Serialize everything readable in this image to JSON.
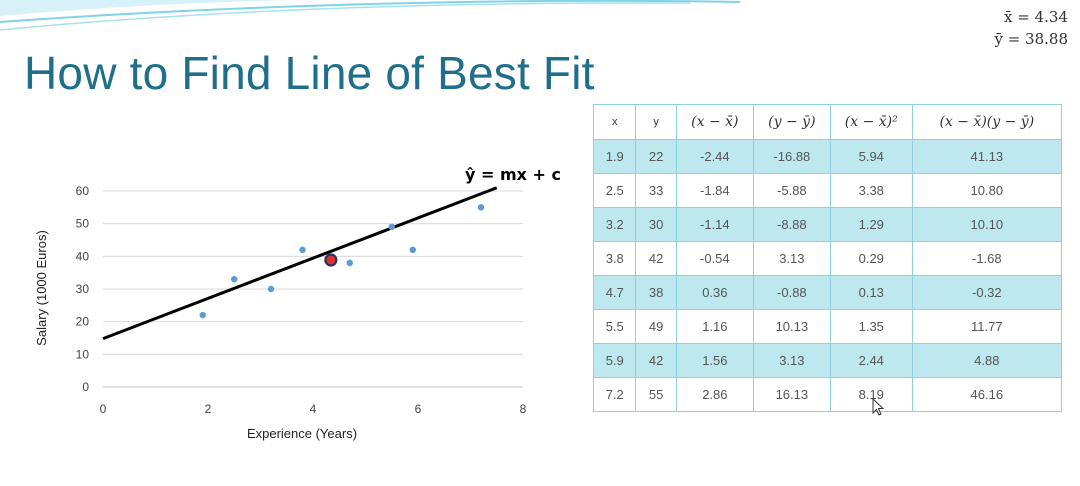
{
  "title": "How to Find Line of Best Fit",
  "means": {
    "x_bar": "x̄ = 4.34",
    "y_bar": "ȳ = 38.88"
  },
  "table": {
    "headers": [
      "x",
      "y",
      "(x − x̄)",
      "(y − ȳ)",
      "(x − x̄)²",
      "(x − x̄)(y − ȳ)"
    ],
    "rows": [
      [
        "1.9",
        "22",
        "-2.44",
        "-16.88",
        "5.94",
        "41.13"
      ],
      [
        "2.5",
        "33",
        "-1.84",
        "-5.88",
        "3.38",
        "10.80"
      ],
      [
        "3.2",
        "30",
        "-1.14",
        "-8.88",
        "1.29",
        "10.10"
      ],
      [
        "3.8",
        "42",
        "-0.54",
        "3.13",
        "0.29",
        "-1.68"
      ],
      [
        "4.7",
        "38",
        "0.36",
        "-0.88",
        "0.13",
        "-0.32"
      ],
      [
        "5.5",
        "49",
        "1.16",
        "10.13",
        "1.35",
        "11.77"
      ],
      [
        "5.9",
        "42",
        "1.56",
        "3.13",
        "2.44",
        "4.88"
      ],
      [
        "7.2",
        "55",
        "2.86",
        "16.13",
        "8.19",
        "46.16"
      ]
    ]
  },
  "chart_data": {
    "type": "scatter",
    "xlabel": "Experience (Years)",
    "ylabel": "Salary (1000 Euros)",
    "xlim": [
      0,
      8
    ],
    "ylim": [
      0,
      60
    ],
    "xticks": [
      0,
      2,
      4,
      6,
      8
    ],
    "yticks": [
      0,
      10,
      20,
      30,
      40,
      50,
      60
    ],
    "grid": "horizontal",
    "points": [
      {
        "x": 1.9,
        "y": 22
      },
      {
        "x": 2.5,
        "y": 33
      },
      {
        "x": 3.2,
        "y": 30
      },
      {
        "x": 3.8,
        "y": 42
      },
      {
        "x": 4.7,
        "y": 38
      },
      {
        "x": 5.5,
        "y": 49
      },
      {
        "x": 5.9,
        "y": 42
      },
      {
        "x": 7.2,
        "y": 55
      }
    ],
    "mean_point": {
      "x": 4.34,
      "y": 38.88
    },
    "fit_line": {
      "x_start": 0,
      "y_start": 14.8,
      "x_end": 7.5,
      "y_end": 61
    },
    "line_label": "ŷ = mx + c",
    "colors": {
      "point": "#5b9bd5",
      "mean_fill": "#e03030",
      "mean_stroke": "#1f3864",
      "line": "#000000",
      "grid": "#d9d9d9"
    }
  }
}
